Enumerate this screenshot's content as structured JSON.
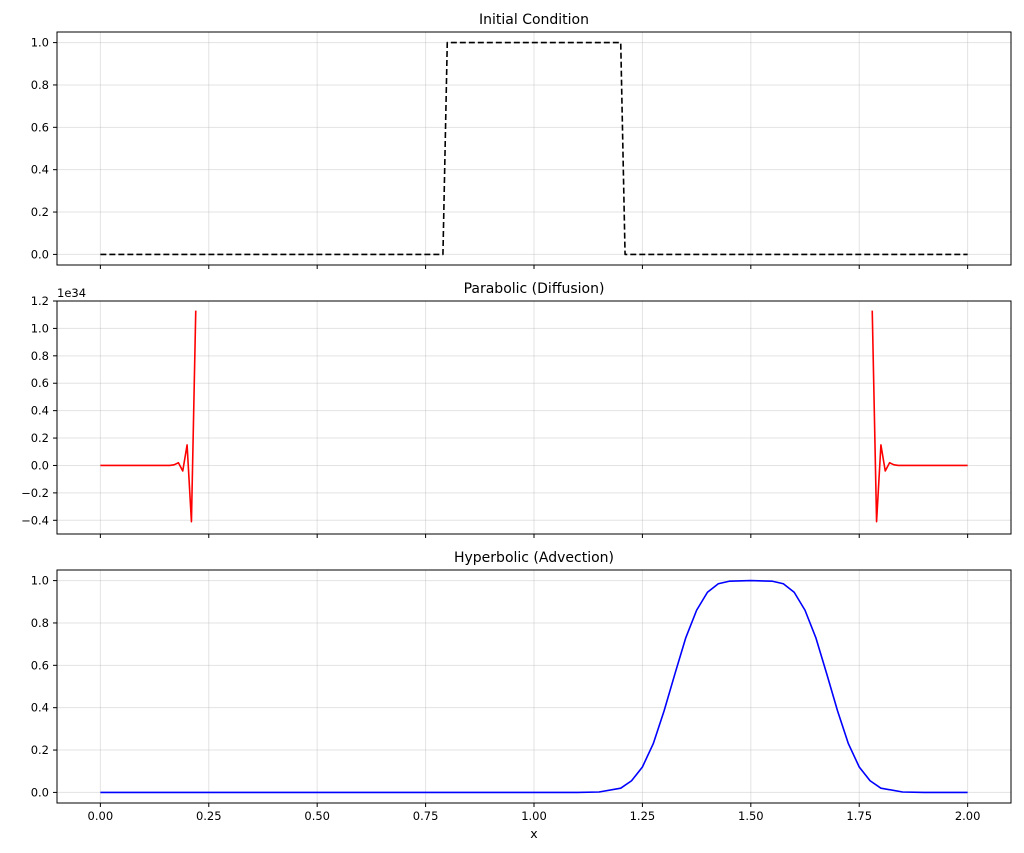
{
  "chart_data": [
    {
      "type": "line",
      "title": "Initial Condition",
      "xlim": [
        -0.1,
        2.1
      ],
      "ylim": [
        -0.05,
        1.05
      ],
      "xticks": [
        0.0,
        0.25,
        0.5,
        0.75,
        1.0,
        1.25,
        1.5,
        1.75,
        2.0
      ],
      "yticks": [
        0.0,
        0.2,
        0.4,
        0.6,
        0.8,
        1.0
      ],
      "ytick_labels": [
        "0.0",
        "0.2",
        "0.4",
        "0.6",
        "0.8",
        "1.0"
      ],
      "show_xtick_labels": false,
      "xlabel": "",
      "ylabel": "",
      "offset_text": "",
      "grid": true,
      "series": [
        {
          "color": "#000000",
          "style": "dashed",
          "x": [
            0.0,
            0.79,
            0.8,
            1.2,
            1.21,
            2.0
          ],
          "y": [
            0.0,
            0.0,
            1.0,
            1.0,
            0.0,
            0.0
          ]
        }
      ]
    },
    {
      "type": "line",
      "title": "Parabolic (Diffusion)",
      "xlim": [
        -0.1,
        2.1
      ],
      "ylim": [
        -0.5,
        1.2
      ],
      "xticks": [
        0.0,
        0.25,
        0.5,
        0.75,
        1.0,
        1.25,
        1.5,
        1.75,
        2.0
      ],
      "yticks": [
        -0.4,
        -0.2,
        0.0,
        0.2,
        0.4,
        0.6,
        0.8,
        1.0,
        1.2
      ],
      "ytick_labels": [
        "−0.4",
        "−0.2",
        "0.0",
        "0.2",
        "0.4",
        "0.6",
        "0.8",
        "1.0",
        "1.2"
      ],
      "show_xtick_labels": false,
      "xlabel": "",
      "ylabel": "",
      "offset_text": "1e34",
      "grid": true,
      "series": [
        {
          "color": "#ff0000",
          "style": "solid",
          "x": [
            0.0,
            0.16,
            0.17,
            0.18,
            0.19,
            0.2,
            0.21,
            0.22,
            null,
            1.78,
            1.79,
            1.8,
            1.81,
            1.82,
            1.83,
            1.84,
            2.0
          ],
          "y": [
            0.0,
            0.0,
            0.005,
            0.02,
            -0.04,
            0.15,
            -0.41,
            1.13,
            null,
            1.13,
            -0.41,
            0.15,
            -0.04,
            0.02,
            0.005,
            0.0,
            0.0
          ]
        }
      ]
    },
    {
      "type": "line",
      "title": "Hyperbolic (Advection)",
      "xlim": [
        -0.1,
        2.1
      ],
      "ylim": [
        -0.05,
        1.05
      ],
      "xticks": [
        0.0,
        0.25,
        0.5,
        0.75,
        1.0,
        1.25,
        1.5,
        1.75,
        2.0
      ],
      "xtick_labels": [
        "0.00",
        "0.25",
        "0.50",
        "0.75",
        "1.00",
        "1.25",
        "1.50",
        "1.75",
        "2.00"
      ],
      "yticks": [
        0.0,
        0.2,
        0.4,
        0.6,
        0.8,
        1.0
      ],
      "ytick_labels": [
        "0.0",
        "0.2",
        "0.4",
        "0.6",
        "0.8",
        "1.0"
      ],
      "show_xtick_labels": true,
      "xlabel": "x",
      "ylabel": "",
      "offset_text": "",
      "grid": true,
      "series": [
        {
          "color": "#0000ff",
          "style": "solid",
          "x": [
            0.0,
            1.1,
            1.15,
            1.2,
            1.225,
            1.25,
            1.275,
            1.3,
            1.325,
            1.35,
            1.375,
            1.4,
            1.425,
            1.45,
            1.5,
            1.55,
            1.575,
            1.6,
            1.625,
            1.65,
            1.675,
            1.7,
            1.725,
            1.75,
            1.775,
            1.8,
            1.85,
            1.9,
            2.0
          ],
          "y": [
            0.0,
            0.0,
            0.002,
            0.02,
            0.055,
            0.12,
            0.23,
            0.385,
            0.56,
            0.73,
            0.86,
            0.945,
            0.985,
            0.997,
            1.0,
            0.997,
            0.985,
            0.945,
            0.86,
            0.73,
            0.56,
            0.385,
            0.23,
            0.12,
            0.055,
            0.02,
            0.002,
            0.0,
            0.0
          ]
        }
      ]
    }
  ]
}
